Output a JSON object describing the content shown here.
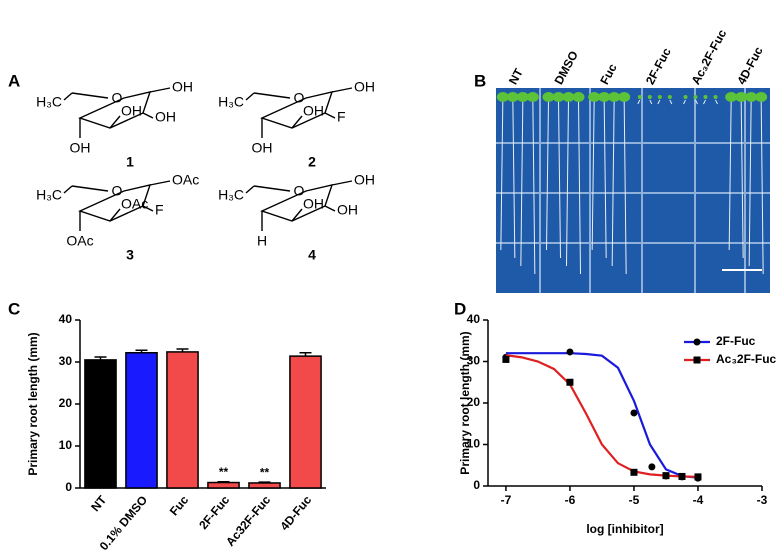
{
  "panels": {
    "A": {
      "label": "A",
      "molecules": [
        {
          "number": "1",
          "labels": [
            "H₃C",
            "O",
            "OH",
            "OH",
            "OH",
            "OH"
          ]
        },
        {
          "number": "2",
          "labels": [
            "H₃C",
            "O",
            "OH",
            "F",
            "OH",
            "OH"
          ]
        },
        {
          "number": "3",
          "labels": [
            "H₃C",
            "O",
            "OAc",
            "F",
            "OAc",
            "OAc"
          ]
        },
        {
          "number": "4",
          "labels": [
            "H₃C",
            "O",
            "OH",
            "OH",
            "OH",
            "H"
          ]
        }
      ]
    },
    "B": {
      "label": "B",
      "columns": [
        "NT",
        "DMSO",
        "Fuc",
        "2F-Fuc",
        "Ac₃2F-Fuc",
        "4D-Fuc"
      ]
    },
    "C": {
      "label": "C"
    },
    "D": {
      "label": "D"
    }
  },
  "chart_data": [
    {
      "type": "bar",
      "y_label": "Primary root length (mm)",
      "categories": [
        "NT",
        "0.1% DMSO",
        "Fuc",
        "2F-Fuc",
        "Ac32F-Fuc",
        "4D-Fuc"
      ],
      "values": [
        30.5,
        32.2,
        32.4,
        1.3,
        1.2,
        31.4
      ],
      "errors": [
        0.7,
        0.6,
        0.7,
        0.2,
        0.2,
        0.8
      ],
      "colors": [
        "#000000",
        "#1a1aff",
        "#f24a4a",
        "#f24a4a",
        "#f24a4a",
        "#f24a4a"
      ],
      "significance": [
        null,
        null,
        null,
        "**",
        "**",
        null
      ],
      "ylim": [
        0,
        40
      ],
      "yticks": [
        0,
        10,
        20,
        30,
        40
      ]
    },
    {
      "type": "line",
      "x_label": "log [inhibitor]",
      "y_label": "Primary root length (mm)",
      "xlim": [
        -7.28,
        -3
      ],
      "xticks": [
        -7,
        -6,
        -5,
        -4,
        -3
      ],
      "ylim": [
        0,
        40
      ],
      "yticks": [
        0,
        10,
        20,
        30,
        40
      ],
      "legend": "upper right",
      "series": [
        {
          "name": "2F-Fuc",
          "color": "#1a1adb",
          "marker": "circle",
          "x": [
            -7,
            -6,
            -5,
            -4.72,
            -4.5,
            -4.25,
            -4
          ],
          "values": [
            31,
            32.3,
            17.6,
            4.6,
            2.4,
            2.2,
            1.9
          ],
          "fit_x": [
            -7,
            -6.75,
            -6.5,
            -6.25,
            -6,
            -5.75,
            -5.5,
            -5.25,
            -5,
            -4.75,
            -4.5,
            -4.25,
            -4
          ],
          "fit_values": [
            32,
            32,
            32,
            32,
            32,
            31.8,
            31.4,
            28.5,
            20.5,
            10,
            4,
            2.4,
            2
          ]
        },
        {
          "name": "Ac₃2F-Fuc",
          "color": "#e02020",
          "marker": "square",
          "x": [
            -7,
            -6,
            -5,
            -4.5,
            -4.25,
            -4
          ],
          "values": [
            30.5,
            25,
            3.3,
            2.5,
            2.3,
            2.2
          ],
          "fit_x": [
            -7,
            -6.75,
            -6.5,
            -6.25,
            -6,
            -5.75,
            -5.5,
            -5.25,
            -5,
            -4.75,
            -4.5,
            -4.25,
            -4
          ],
          "fit_values": [
            31.5,
            31,
            30,
            28.2,
            24.5,
            17.5,
            10,
            5.5,
            3.5,
            2.8,
            2.5,
            2.3,
            2.2
          ]
        }
      ]
    }
  ]
}
